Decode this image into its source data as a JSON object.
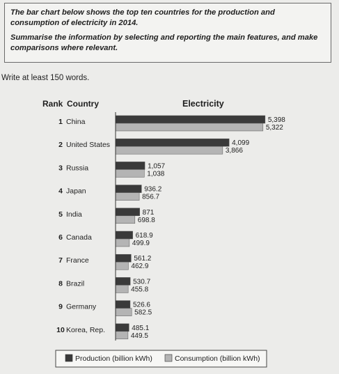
{
  "task": {
    "line1": "The bar chart below shows the top ten countries for the production and consumption of electricity in 2014.",
    "line2": "Summarise the information by selecting and reporting the main features, and make comparisons where relevant."
  },
  "word_count_text": "Write at least 150 words.",
  "chart_data": {
    "type": "bar",
    "orientation": "horizontal",
    "title": "Electricity",
    "rank_header": "Rank",
    "country_header": "Country",
    "ranks": [
      "1",
      "2",
      "3",
      "4",
      "5",
      "6",
      "7",
      "8",
      "9",
      "10"
    ],
    "categories": [
      "China",
      "United States",
      "Russia",
      "Japan",
      "India",
      "Canada",
      "France",
      "Brazil",
      "Germany",
      "Korea, Rep."
    ],
    "series": [
      {
        "name": "Production (billion kWh)",
        "color": "#3a3a3a",
        "values": [
          5398,
          4099,
          1057,
          936.2,
          871,
          618.9,
          561.2,
          530.7,
          526.6,
          485.1
        ],
        "labels": [
          "5,398",
          "4,099",
          "1,057",
          "936.2",
          "871",
          "618.9",
          "561.2",
          "530.7",
          "526.6",
          "485.1"
        ]
      },
      {
        "name": "Consumption (billion kWh)",
        "color": "#b4b4b4",
        "values": [
          5322,
          3866,
          1038,
          856.7,
          698.8,
          499.9,
          462.9,
          455.8,
          582.5,
          449.5
        ],
        "labels": [
          "5,322",
          "3,866",
          "1,038",
          "856.7",
          "698.8",
          "499.9",
          "462.9",
          "455.8",
          "582.5",
          "449.5"
        ]
      }
    ],
    "grid": false,
    "legend_position": "bottom"
  }
}
